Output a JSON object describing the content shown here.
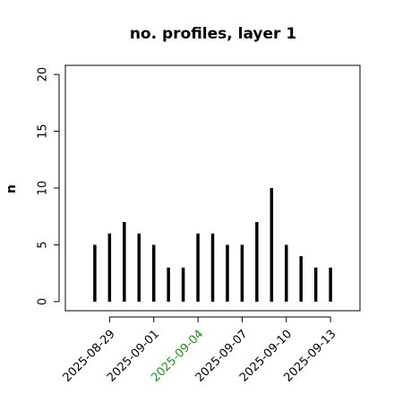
{
  "chart_data": {
    "type": "bar",
    "title": "no. profiles, layer 1",
    "y_label": "n",
    "x": [
      "2025-08-28",
      "2025-08-29",
      "2025-08-30",
      "2025-08-31",
      "2025-09-01",
      "2025-09-02",
      "2025-09-03",
      "2025-09-04",
      "2025-09-05",
      "2025-09-06",
      "2025-09-07",
      "2025-09-08",
      "2025-09-09",
      "2025-09-10",
      "2025-09-11",
      "2025-09-12",
      "2025-09-13"
    ],
    "values": [
      5,
      6,
      7,
      6,
      5,
      3,
      3,
      6,
      6,
      5,
      5,
      7,
      10,
      5,
      4,
      3,
      3
    ],
    "color": "#000000",
    "xlim": [
      "2025-08-26",
      "2025-09-15"
    ],
    "xticks": [
      "2025-08-29",
      "2025-09-01",
      "2025-09-04",
      "2025-09-07",
      "2025-09-10",
      "2025-09-13"
    ],
    "highlight_xtick": "2025-09-04",
    "highlight_color": "#228b22",
    "ylim": [
      -0.8,
      20.8
    ],
    "yticks": [
      0,
      5,
      10,
      15,
      20
    ]
  }
}
